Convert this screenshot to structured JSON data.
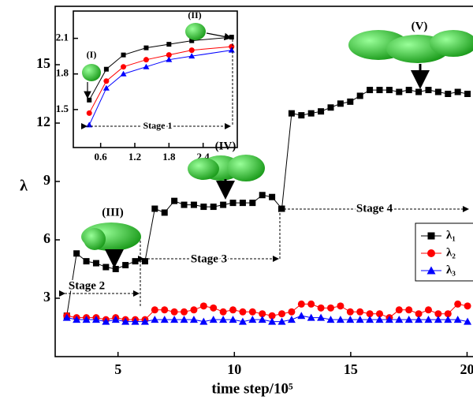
{
  "chart_data": [
    {
      "type": "line",
      "x_label": "time step/10⁵",
      "y_label": "λ",
      "x": [
        2.8,
        3.22,
        3.64,
        4.06,
        4.48,
        4.9,
        5.32,
        5.74,
        6.16,
        6.58,
        7.0,
        7.42,
        7.84,
        8.26,
        8.68,
        9.1,
        9.52,
        9.94,
        10.36,
        10.78,
        11.2,
        11.62,
        12.04,
        12.46,
        12.88,
        13.3,
        13.72,
        14.14,
        14.56,
        14.98,
        15.4,
        15.82,
        16.24,
        16.66,
        17.08,
        17.5,
        17.92,
        18.34,
        18.76,
        19.18,
        19.6,
        20.02
      ],
      "series": [
        {
          "name": "λ₁",
          "color": "#000000",
          "marker": "square",
          "values": [
            2.1,
            5.3,
            4.9,
            4.8,
            4.6,
            4.5,
            4.7,
            4.9,
            4.9,
            7.6,
            7.4,
            8.0,
            7.8,
            7.8,
            7.7,
            7.7,
            7.8,
            7.9,
            7.9,
            7.9,
            8.3,
            8.2,
            7.6,
            12.5,
            12.4,
            12.5,
            12.6,
            12.8,
            13.0,
            13.1,
            13.4,
            13.7,
            13.7,
            13.7,
            13.6,
            13.7,
            13.6,
            13.7,
            13.6,
            13.5,
            13.6,
            13.5
          ]
        },
        {
          "name": "λ₂",
          "color": "#ff0000",
          "marker": "circle",
          "values": [
            2.1,
            2.0,
            2.0,
            2.0,
            1.9,
            2.0,
            1.9,
            1.9,
            1.9,
            2.4,
            2.4,
            2.3,
            2.3,
            2.4,
            2.6,
            2.5,
            2.3,
            2.4,
            2.3,
            2.3,
            2.2,
            2.1,
            2.2,
            2.3,
            2.7,
            2.7,
            2.5,
            2.5,
            2.6,
            2.3,
            2.3,
            2.2,
            2.2,
            2.0,
            2.4,
            2.4,
            2.2,
            2.4,
            2.2,
            2.2,
            2.7,
            2.6
          ]
        },
        {
          "name": "λ₃",
          "color": "#0000ff",
          "marker": "triangle",
          "values": [
            2.0,
            1.9,
            1.9,
            1.9,
            1.8,
            1.9,
            1.8,
            1.8,
            1.8,
            1.9,
            1.9,
            1.9,
            1.9,
            1.9,
            1.8,
            1.9,
            1.9,
            1.9,
            1.8,
            1.9,
            1.9,
            1.8,
            1.8,
            1.9,
            2.1,
            2.0,
            2.0,
            1.9,
            1.9,
            1.9,
            1.9,
            1.9,
            1.9,
            1.9,
            1.9,
            1.9,
            1.9,
            1.9,
            1.9,
            1.9,
            1.9,
            1.8
          ]
        }
      ],
      "xlim": [
        2.3,
        21
      ],
      "ylim": [
        0,
        18
      ],
      "xticks": [
        5,
        10,
        15,
        20
      ],
      "yticks": [
        3,
        6,
        9,
        12,
        15
      ],
      "legend": "right",
      "annotations": [
        "(III)",
        "(IV)",
        "(V)",
        "Stage 2",
        "Stage 3",
        "Stage 4"
      ]
    },
    {
      "type": "line",
      "x": [
        0.4,
        0.7,
        1.0,
        1.4,
        1.8,
        2.2,
        2.9
      ],
      "series": [
        {
          "color": "#000000",
          "marker": "square",
          "values": [
            1.58,
            1.84,
            1.96,
            2.02,
            2.05,
            2.08,
            2.11
          ]
        },
        {
          "color": "#ff0000",
          "marker": "circle",
          "values": [
            1.47,
            1.74,
            1.86,
            1.92,
            1.96,
            2.0,
            2.03
          ]
        },
        {
          "color": "#0000ff",
          "marker": "triangle",
          "values": [
            1.37,
            1.68,
            1.8,
            1.86,
            1.92,
            1.95,
            2.0
          ]
        }
      ],
      "xlim": [
        0.12,
        3.0
      ],
      "ylim": [
        1.18,
        2.33
      ],
      "xticks": [
        0.6,
        1.2,
        1.8,
        2.4
      ],
      "yticks": [
        1.5,
        1.8,
        2.1
      ],
      "annotations": [
        "(I)",
        "(II)",
        "Stage 1"
      ]
    }
  ]
}
